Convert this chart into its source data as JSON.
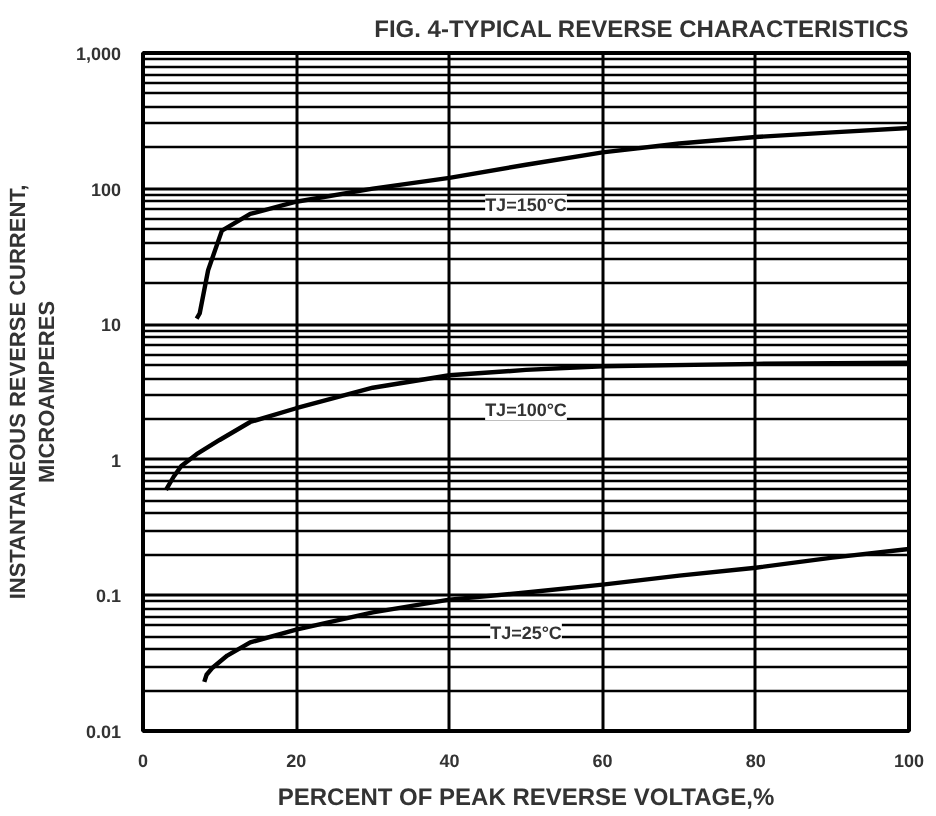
{
  "chart_data": {
    "type": "line",
    "title": "FIG. 4-TYPICAL REVERSE CHARACTERISTICS",
    "xlabel": "PERCENT OF PEAK REVERSE VOLTAGE,%",
    "ylabel": "INSTANTANEOUS REVERSE CURRENT,\nMICROAMPERES",
    "log": "y",
    "grid": true,
    "marker": "none",
    "line_style": "solid",
    "xlim": [
      0,
      100
    ],
    "xticks": [
      0,
      20,
      40,
      60,
      80,
      100
    ],
    "ylim": [
      0.01,
      1000
    ],
    "yticks": [
      0.01,
      0.1,
      1,
      10,
      100,
      {
        "value": 1000,
        "label": "1,000"
      }
    ],
    "series": [
      {
        "color": "#000000",
        "x": [
          7,
          7.4,
          8.5,
          10.3,
          14,
          20,
          30,
          40,
          50,
          60,
          70,
          80,
          90,
          100
        ],
        "values": [
          11,
          12,
          25,
          49,
          65,
          80,
          100,
          120,
          150,
          185,
          215,
          240,
          260,
          280
        ]
      },
      {
        "color": "#000000",
        "x": [
          3,
          4,
          5,
          7,
          10,
          14,
          20,
          30,
          40,
          50,
          60,
          80,
          100
        ],
        "values": [
          0.6,
          0.75,
          0.9,
          1.1,
          1.4,
          1.9,
          2.4,
          3.4,
          4.2,
          4.6,
          4.9,
          5.1,
          5.2
        ]
      },
      {
        "color": "#000000",
        "x": [
          8,
          8.3,
          9,
          11,
          14,
          20,
          30,
          40,
          50,
          60,
          70,
          80,
          90,
          100
        ],
        "values": [
          0.023,
          0.026,
          0.029,
          0.036,
          0.045,
          0.056,
          0.075,
          0.093,
          0.105,
          0.12,
          0.14,
          0.16,
          0.19,
          0.22
        ]
      }
    ],
    "annotations": [
      "TJ=150°C",
      "TJ=100°C",
      "TJ=25°C"
    ]
  }
}
